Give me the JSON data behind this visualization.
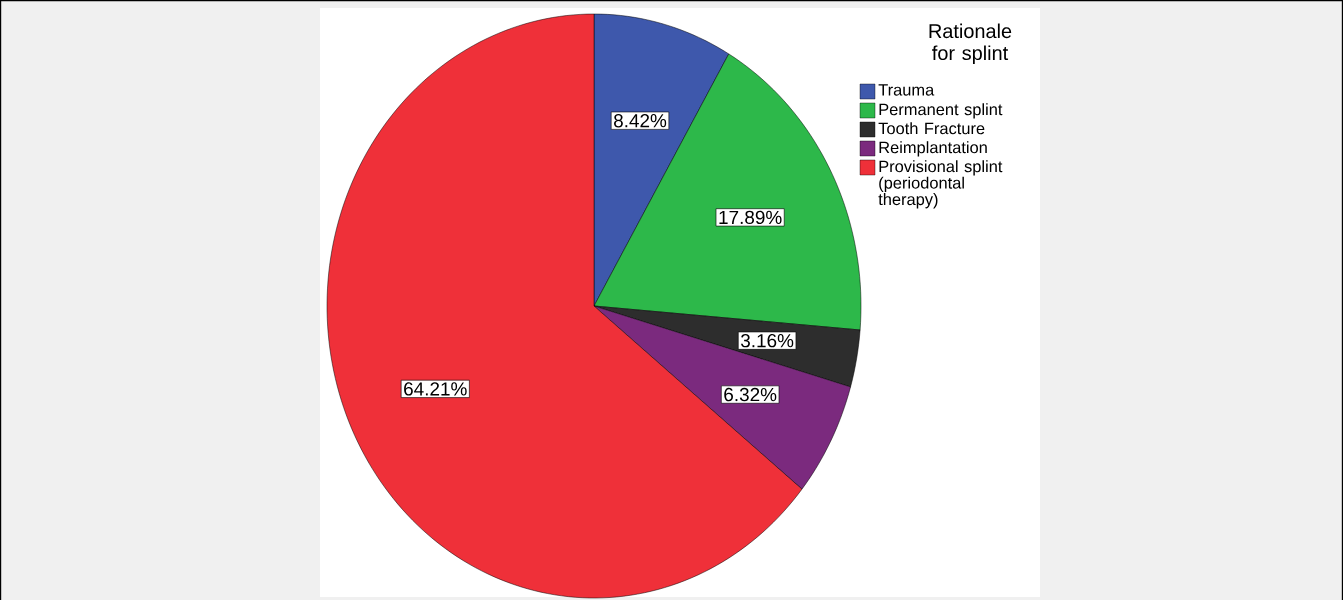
{
  "chart_data": {
    "type": "pie",
    "legend_title": "Rationale for splint",
    "categories": [
      "Trauma",
      "Permanent splint",
      "Tooth Fracture",
      "Reimplantation",
      "Provisional splint (periodontal therapy)"
    ],
    "values": [
      8.42,
      17.89,
      3.16,
      6.32,
      64.21
    ],
    "colors": [
      "#3e58ac",
      "#2db84a",
      "#2d2d2d",
      "#7b2a7e",
      "#ef3039"
    ],
    "value_labels": [
      "8.42%",
      "17.89%",
      "3.16%",
      "6.32%",
      "64.21%"
    ],
    "legend": "top right"
  }
}
